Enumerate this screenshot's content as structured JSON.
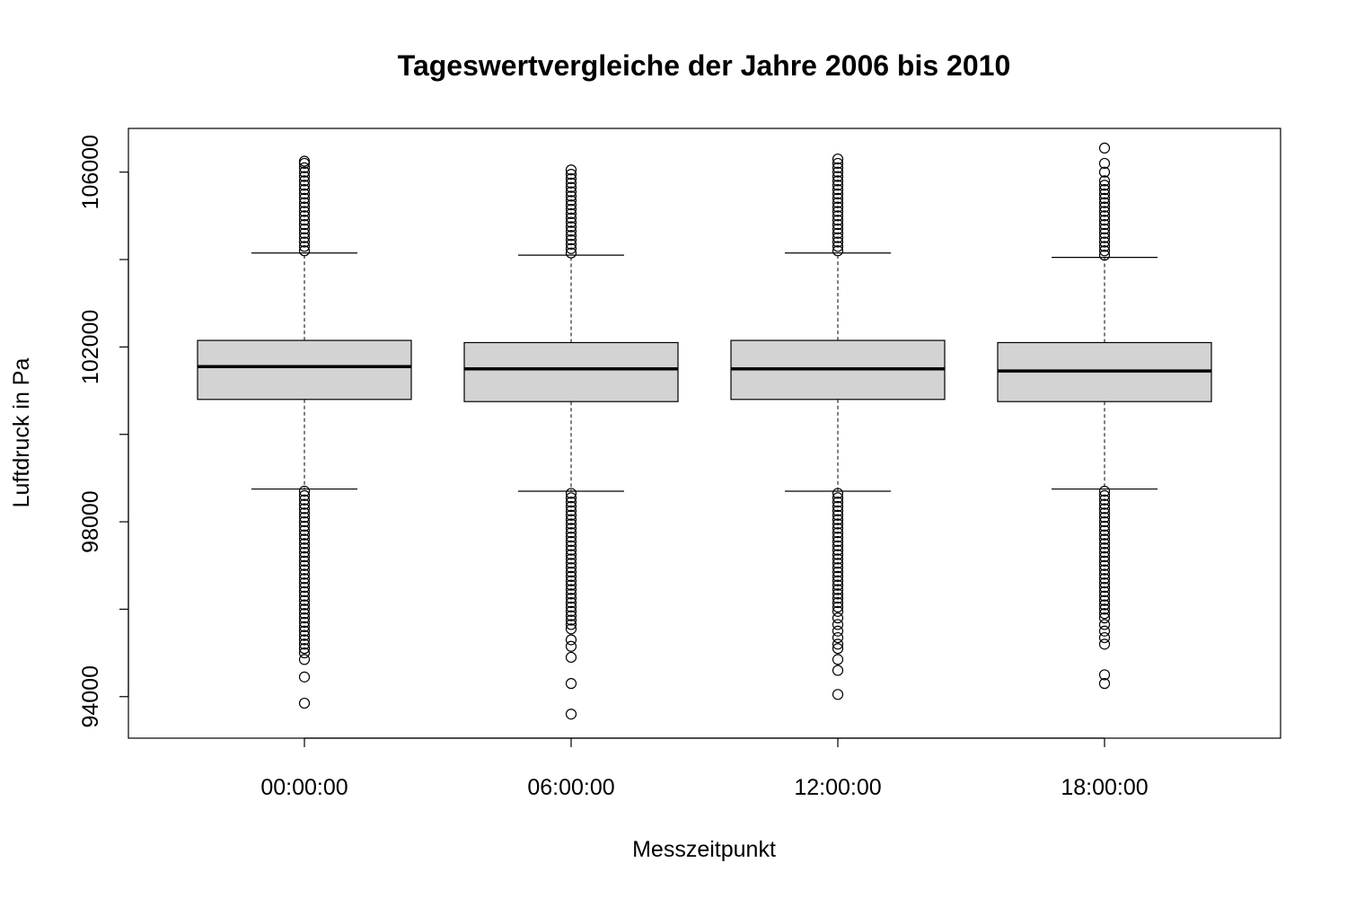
{
  "chart_data": {
    "type": "boxplot",
    "title": "Tageswertvergleiche der Jahre 2006 bis 2010",
    "xlabel": "Messzeitpunkt",
    "ylabel": "Luftdruck in Pa",
    "categories": [
      "00:00:00",
      "06:00:00",
      "12:00:00",
      "18:00:00"
    ],
    "yticks": [
      94000,
      98000,
      102000,
      106000
    ],
    "ylim": [
      93050,
      107000
    ],
    "grid": false,
    "legend": "none",
    "box_fill": "#d3d3d3",
    "boxes": [
      {
        "category": "00:00:00",
        "whisker_low": 98750,
        "q1": 100800,
        "median": 101550,
        "q3": 102150,
        "whisker_high": 104150,
        "outliers_high": [
          104200,
          104300,
          104400,
          104500,
          104600,
          104700,
          104800,
          104900,
          105000,
          105100,
          105200,
          105300,
          105400,
          105500,
          105600,
          105700,
          105800,
          105900,
          106000,
          106100,
          106200,
          106250
        ],
        "outliers_low": [
          98700,
          98600,
          98500,
          98400,
          98300,
          98200,
          98100,
          98000,
          97900,
          97800,
          97700,
          97600,
          97500,
          97400,
          97300,
          97200,
          97100,
          97000,
          96900,
          96800,
          96700,
          96600,
          96500,
          96400,
          96300,
          96200,
          96100,
          96000,
          95900,
          95800,
          95700,
          95600,
          95500,
          95400,
          95300,
          95200,
          95100,
          95000,
          94850,
          94450,
          93850
        ]
      },
      {
        "category": "06:00:00",
        "whisker_low": 98700,
        "q1": 100750,
        "median": 101500,
        "q3": 102100,
        "whisker_high": 104100,
        "outliers_high": [
          104150,
          104250,
          104350,
          104450,
          104550,
          104650,
          104750,
          104850,
          104950,
          105050,
          105150,
          105250,
          105350,
          105450,
          105550,
          105650,
          105750,
          105850,
          105950,
          106050
        ],
        "outliers_low": [
          98650,
          98550,
          98450,
          98350,
          98250,
          98150,
          98050,
          97950,
          97850,
          97750,
          97650,
          97550,
          97450,
          97350,
          97250,
          97150,
          97050,
          96950,
          96850,
          96750,
          96650,
          96550,
          96450,
          96350,
          96250,
          96150,
          96050,
          95950,
          95850,
          95750,
          95650,
          95550,
          95300,
          95150,
          94900,
          94300,
          93600
        ]
      },
      {
        "category": "12:00:00",
        "whisker_low": 98700,
        "q1": 100800,
        "median": 101500,
        "q3": 102150,
        "whisker_high": 104150,
        "outliers_high": [
          104200,
          104300,
          104400,
          104500,
          104600,
          104700,
          104800,
          104900,
          105000,
          105100,
          105200,
          105300,
          105400,
          105500,
          105600,
          105700,
          105800,
          105900,
          106000,
          106100,
          106200,
          106300
        ],
        "outliers_low": [
          98650,
          98550,
          98450,
          98350,
          98250,
          98150,
          98050,
          97950,
          97850,
          97750,
          97650,
          97550,
          97450,
          97350,
          97250,
          97150,
          97050,
          96950,
          96850,
          96750,
          96650,
          96550,
          96450,
          96350,
          96250,
          96150,
          96050,
          95950,
          95800,
          95650,
          95500,
          95350,
          95200,
          95100,
          94850,
          94600,
          94050
        ]
      },
      {
        "category": "18:00:00",
        "whisker_low": 98750,
        "q1": 100750,
        "median": 101450,
        "q3": 102100,
        "whisker_high": 104050,
        "outliers_high": [
          104100,
          104200,
          104300,
          104400,
          104500,
          104600,
          104700,
          104800,
          104900,
          105000,
          105100,
          105200,
          105300,
          105400,
          105500,
          105600,
          105700,
          105800,
          106000,
          106200,
          106550
        ],
        "outliers_low": [
          98700,
          98600,
          98500,
          98400,
          98300,
          98200,
          98100,
          98000,
          97900,
          97800,
          97700,
          97600,
          97500,
          97400,
          97300,
          97200,
          97100,
          97000,
          96900,
          96800,
          96700,
          96600,
          96500,
          96400,
          96300,
          96200,
          96100,
          96000,
          95900,
          95800,
          95650,
          95500,
          95350,
          95200,
          94500,
          94300
        ]
      }
    ]
  }
}
